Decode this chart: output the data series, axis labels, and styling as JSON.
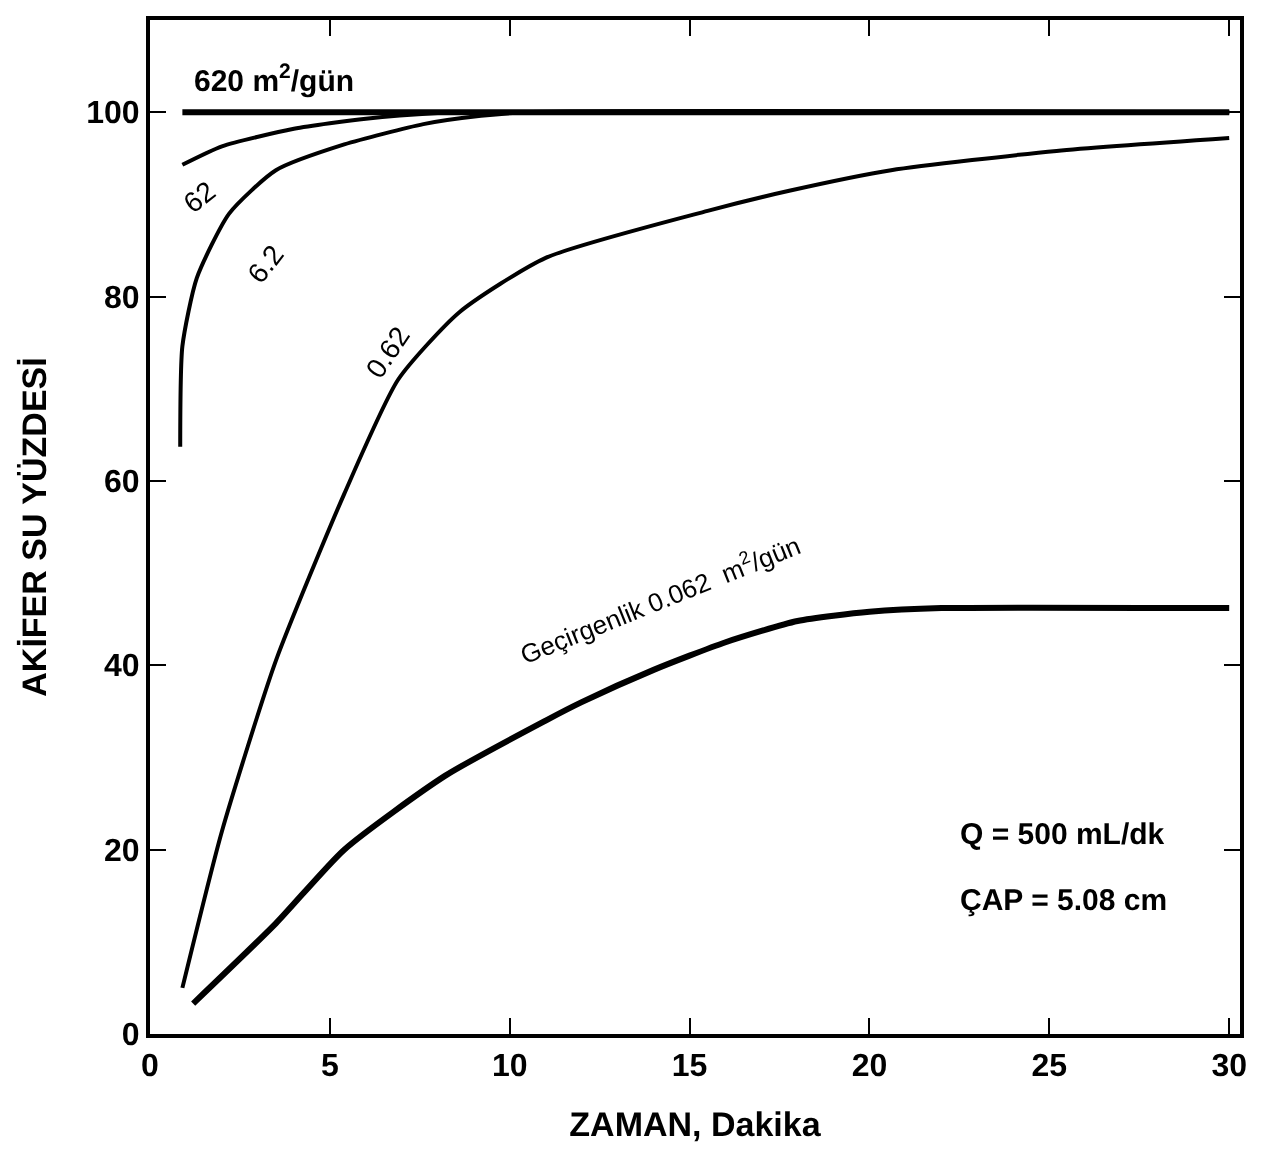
{
  "chart_data": {
    "type": "line",
    "xlabel": "ZAMAN, Dakika",
    "ylabel": "AKİFER SU YÜZDESİ",
    "xlim": [
      0,
      30.3
    ],
    "ylim": [
      0,
      110
    ],
    "xticks": [
      0,
      5,
      10,
      15,
      20,
      25,
      30
    ],
    "yticks": [
      0,
      20,
      40,
      60,
      80,
      100
    ],
    "marker": "none",
    "line_style": "solid",
    "series": [
      {
        "name": "620 m$^{2}$/gün",
        "color": "#000000",
        "x": [
          0.9,
          30
        ],
        "values": [
          100,
          100
        ]
      },
      {
        "name": "62",
        "color": "#000000",
        "x": [
          0.9,
          2,
          4,
          6,
          8,
          9,
          30
        ],
        "values": [
          94.3,
          96.3,
          98.2,
          99.3,
          99.9,
          100,
          100
        ]
      },
      {
        "name": "6.2",
        "color": "#000000",
        "x": [
          0.84,
          0.9,
          1.3,
          2.2,
          3.5,
          5.4,
          7.6,
          9.2,
          10.5,
          30
        ],
        "values": [
          63.7,
          74.6,
          82,
          89,
          93.7,
          96.5,
          98.7,
          99.6,
          100,
          100
        ]
      },
      {
        "name": "0.62",
        "color": "#000000",
        "x": [
          0.9,
          2,
          3.5,
          5.4,
          6.9,
          8.6,
          11,
          15.5,
          17.8,
          20.6,
          25.2,
          30
        ],
        "values": [
          5,
          22,
          40.5,
          58.6,
          71,
          78.3,
          84.2,
          89.3,
          91.5,
          93.7,
          95.8,
          97.2
        ]
      },
      {
        "name": "Geçirgenlik 0.062  m$^{2}$/gün",
        "color": "#000000",
        "x": [
          1.2,
          3.5,
          5.4,
          8.2,
          11,
          12,
          14,
          16,
          18,
          20,
          22,
          30
        ],
        "values": [
          3.3,
          12,
          20,
          28,
          34,
          36,
          39.5,
          42.5,
          44.8,
          45.8,
          46.2,
          46.2
        ]
      }
    ],
    "annotations": [
      "Q = 500 mL/dk",
      "ÇAP = 5.08 cm"
    ]
  }
}
